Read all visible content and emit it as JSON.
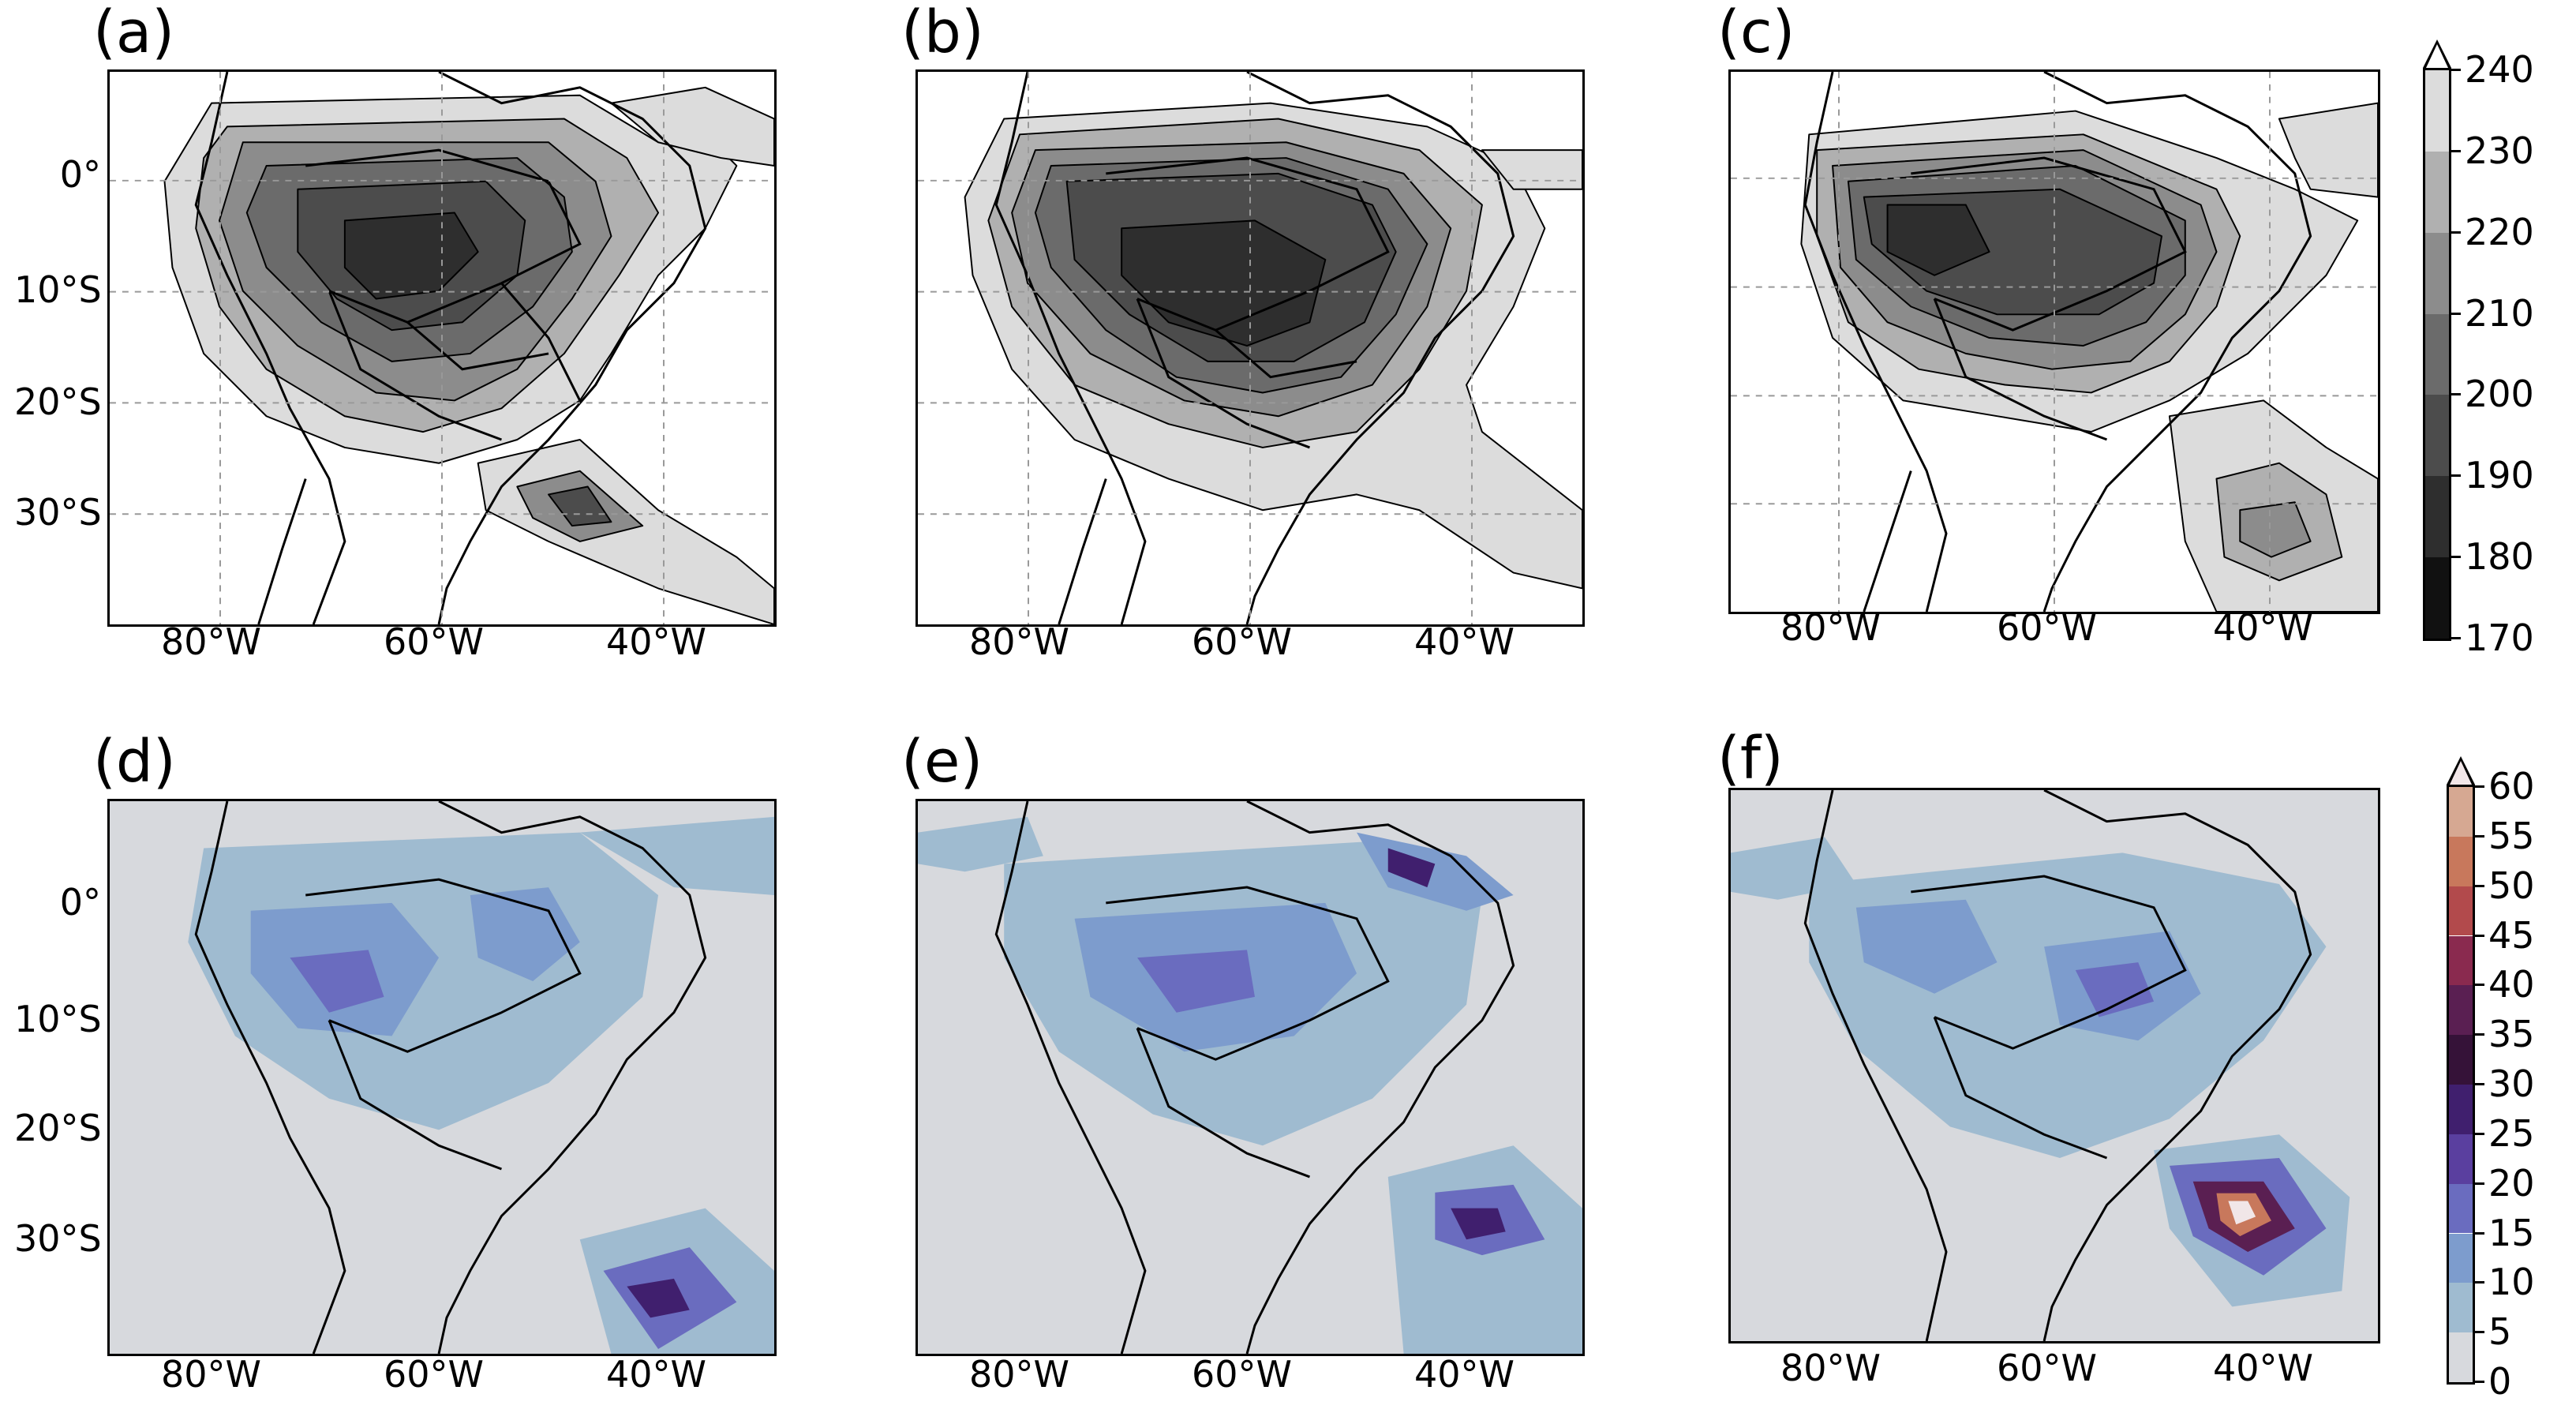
{
  "panels": [
    {
      "label": "(a)",
      "kind": "tb",
      "lat_labels": [
        "0°",
        "10°S",
        "20°S",
        "30°S"
      ],
      "lon_labels": [
        "80°W",
        "60°W",
        "40°W"
      ]
    },
    {
      "label": "(b)",
      "kind": "tb",
      "lat_labels": [],
      "lon_labels": [
        "80°W",
        "60°W",
        "40°W"
      ]
    },
    {
      "label": "(c)",
      "kind": "tb",
      "lat_labels": [],
      "lon_labels": [
        "80°W",
        "60°W",
        "40°W"
      ]
    },
    {
      "label": "(d)",
      "kind": "precip",
      "lat_labels": [
        "0°",
        "10°S",
        "20°S",
        "30°S"
      ],
      "lon_labels": [
        "80°W",
        "60°W",
        "40°W"
      ]
    },
    {
      "label": "(e)",
      "kind": "precip",
      "lat_labels": [],
      "lon_labels": [
        "80°W",
        "60°W",
        "40°W"
      ]
    },
    {
      "label": "(f)",
      "kind": "precip",
      "lat_labels": [],
      "lon_labels": [
        "80°W",
        "60°W",
        "40°W"
      ]
    }
  ],
  "colorbars": {
    "tb": {
      "ticks": [
        "170",
        "180",
        "190",
        "200",
        "210",
        "220",
        "230",
        "240"
      ],
      "colors": [
        "#111111",
        "#2e2e2e",
        "#4c4c4c",
        "#6b6b6b",
        "#8c8c8c",
        "#b0b0b0",
        "#dcdcdc"
      ]
    },
    "precip": {
      "ticks": [
        "0",
        "5",
        "10",
        "15",
        "20",
        "25",
        "30",
        "35",
        "40",
        "45",
        "50",
        "55",
        "60"
      ],
      "colors": [
        "#d7d9dd",
        "#9fbbd0",
        "#7d9ccd",
        "#6a6cbf",
        "#5a3f9f",
        "#401f6e",
        "#351238",
        "#5a1f52",
        "#8a2a4f",
        "#b24a4c",
        "#c8785c",
        "#d6a892"
      ]
    }
  }
}
